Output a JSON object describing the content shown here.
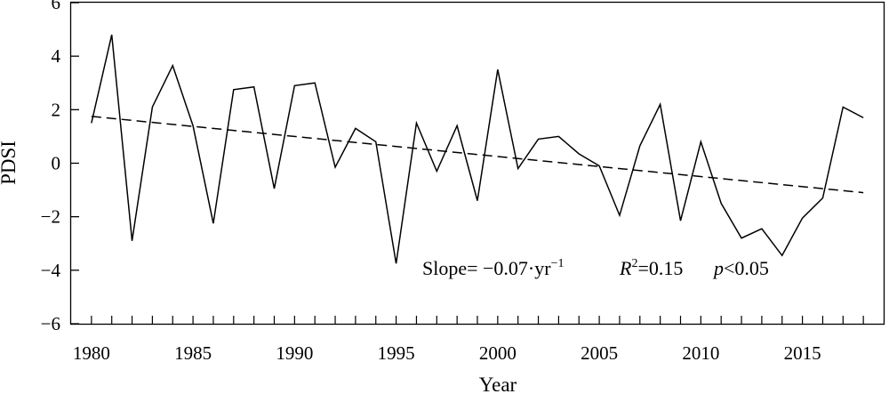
{
  "chart_data": {
    "type": "line",
    "xlabel": "Year",
    "ylabel": "PDSI",
    "xlim": [
      1979,
      2019
    ],
    "ylim": [
      -6,
      6
    ],
    "x_ticks": [
      1980,
      1985,
      1990,
      1995,
      2000,
      2005,
      2010,
      2015
    ],
    "y_ticks": [
      -6,
      -4,
      -2,
      0,
      2,
      4,
      6
    ],
    "x_tick_labels": [
      "1980",
      "1985",
      "1990",
      "1995",
      "2000",
      "2005",
      "2010",
      "2015"
    ],
    "y_tick_labels": [
      "−6",
      "−4",
      "−2",
      "0",
      "2",
      "4",
      "6"
    ],
    "grid": false,
    "series": [
      {
        "style": "solid",
        "x": [
          1980,
          1981,
          1982,
          1983,
          1984,
          1985,
          1986,
          1987,
          1988,
          1989,
          1990,
          1991,
          1992,
          1993,
          1994,
          1995,
          1996,
          1997,
          1998,
          1999,
          2000,
          2001,
          2002,
          2003,
          2004,
          2005,
          2006,
          2007,
          2008,
          2009,
          2010,
          2011,
          2012,
          2013,
          2014,
          2015,
          2016,
          2017,
          2018
        ],
        "values": [
          1.5,
          4.8,
          -2.9,
          2.1,
          3.65,
          1.4,
          -2.25,
          2.75,
          2.85,
          -0.95,
          2.9,
          3.0,
          -0.15,
          1.3,
          0.8,
          -3.75,
          1.5,
          -0.3,
          1.4,
          -1.4,
          3.5,
          -0.2,
          0.9,
          1.0,
          0.35,
          -0.1,
          -1.95,
          0.65,
          2.2,
          -2.15,
          0.8,
          -1.5,
          -2.8,
          -2.45,
          -3.45,
          -2.05,
          -1.3,
          2.1,
          1.7
        ]
      },
      {
        "style": "dashed",
        "x": [
          1980,
          2018
        ],
        "values": [
          1.75,
          -1.1
        ]
      }
    ],
    "annotation": {
      "slope_text": "Slope= −0.07·yr",
      "slope_sup": "−1",
      "r_label": "R",
      "r_sup": "2",
      "r_value": "=0.15",
      "p_label": "p",
      "p_value": "<0.05"
    }
  }
}
